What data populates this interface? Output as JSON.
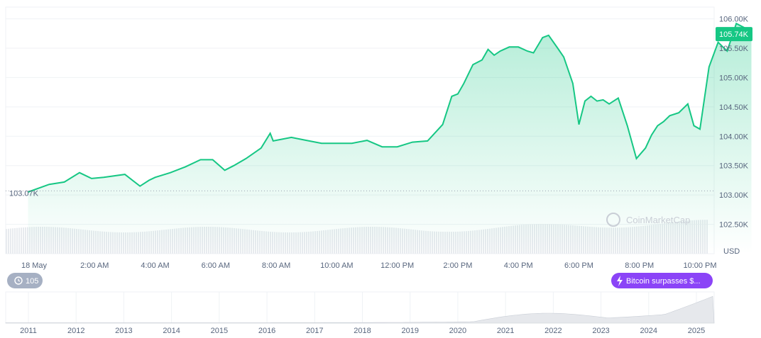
{
  "chart_data": {
    "type": "area",
    "y_currency": "USD",
    "ylim": [
      102.0,
      106.2
    ],
    "y_ticks": [
      "106.00K",
      "105.50K",
      "105.00K",
      "104.50K",
      "104.00K",
      "103.50K",
      "103.00K",
      "102.50K"
    ],
    "y_tick_values": [
      106.0,
      105.5,
      105.0,
      104.5,
      104.0,
      103.5,
      103.0,
      102.5
    ],
    "x_ticks": [
      "18 May",
      "2:00 AM",
      "4:00 AM",
      "6:00 AM",
      "8:00 AM",
      "10:00 AM",
      "12:00 PM",
      "2:00 PM",
      "4:00 PM",
      "6:00 PM",
      "8:00 PM",
      "10:00 PM"
    ],
    "x_tick_hours": [
      0,
      2,
      4,
      6,
      8,
      10,
      12,
      14,
      16,
      18,
      20,
      22
    ],
    "x_unit": "hours since 18 May 00:00",
    "open_price_label": "103.07K",
    "open_price": 103.07,
    "current_price_label": "105.74K",
    "current_price": 105.74,
    "line_color": "#16c784",
    "series": [
      {
        "x": [
          -0.2,
          0.5,
          1.0,
          1.5,
          1.9,
          2.3,
          3.0,
          3.5,
          3.8,
          4.0,
          4.5,
          5.0,
          5.5,
          5.9,
          6.3,
          6.6,
          7.0,
          7.5,
          7.8,
          7.9,
          8.2,
          8.5,
          9.0,
          9.5,
          10.0,
          10.5,
          11.0,
          11.5,
          12.0,
          12.5,
          13.0,
          13.5,
          13.8,
          14.0,
          14.2,
          14.5,
          14.8,
          15.0,
          15.2,
          15.4,
          15.7,
          16.0,
          16.3,
          16.5,
          16.8,
          17.0,
          17.3,
          17.5,
          17.8,
          18.0,
          18.2,
          18.4,
          18.6,
          18.8,
          19.0,
          19.3,
          19.6,
          19.9,
          20.2,
          20.4,
          20.6,
          20.8,
          21.0,
          21.3,
          21.6,
          21.8,
          22.0,
          22.3,
          22.6,
          22.9,
          23.2,
          23.5,
          23.7
        ],
        "y": [
          103.05,
          103.18,
          103.22,
          103.38,
          103.28,
          103.3,
          103.35,
          103.15,
          103.25,
          103.3,
          103.38,
          103.48,
          103.6,
          103.6,
          103.42,
          103.5,
          103.62,
          103.8,
          104.05,
          103.92,
          103.95,
          103.98,
          103.93,
          103.88,
          103.88,
          103.88,
          103.93,
          103.82,
          103.82,
          103.9,
          103.92,
          104.2,
          104.68,
          104.72,
          104.9,
          105.22,
          105.3,
          105.48,
          105.38,
          105.45,
          105.52,
          105.52,
          105.45,
          105.42,
          105.68,
          105.72,
          105.5,
          105.35,
          104.9,
          104.2,
          104.6,
          104.68,
          104.6,
          104.62,
          104.55,
          104.65,
          104.18,
          103.62,
          103.8,
          104.02,
          104.18,
          104.25,
          104.35,
          104.4,
          104.55,
          104.18,
          104.12,
          105.18,
          105.6,
          105.45,
          105.92,
          105.84,
          105.74
        ]
      }
    ],
    "volume_bars": "light gray bars across full range",
    "watermark": "CoinMarketCap",
    "mini_navigator": {
      "years": [
        "2011",
        "2012",
        "2013",
        "2014",
        "2015",
        "2016",
        "2017",
        "2018",
        "2019",
        "2020",
        "2021",
        "2022",
        "2023",
        "2024",
        "2025"
      ],
      "history_badge": "105",
      "event_badge": "Bitcoin surpasses $..."
    }
  }
}
